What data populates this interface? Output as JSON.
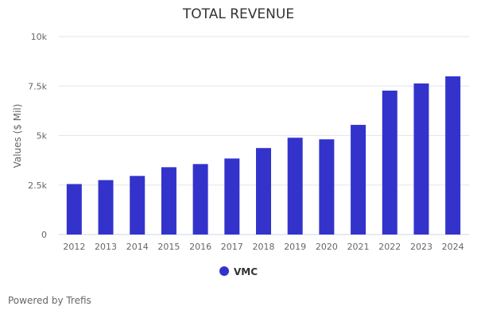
{
  "chart_data": {
    "type": "bar",
    "title": "TOTAL REVENUE",
    "ylabel": "Values ($ Mil)",
    "xlabel": "",
    "ylim": [
      0,
      10000
    ],
    "yticks": [
      0,
      2500,
      5000,
      7500,
      10000
    ],
    "ytick_labels": [
      "0",
      "2.5k",
      "5k",
      "7.5k",
      "10k"
    ],
    "grid": true,
    "legend_position": "bottom",
    "categories": [
      "2012",
      "2013",
      "2014",
      "2015",
      "2016",
      "2017",
      "2018",
      "2019",
      "2020",
      "2021",
      "2022",
      "2023",
      "2024"
    ],
    "series": [
      {
        "name": "VMC",
        "color": "#3333cc",
        "values": [
          2550,
          2750,
          2960,
          3400,
          3560,
          3840,
          4370,
          4890,
          4810,
          5540,
          7270,
          7630,
          7990
        ]
      }
    ]
  },
  "footer": {
    "credit": "Powered by Trefis"
  }
}
